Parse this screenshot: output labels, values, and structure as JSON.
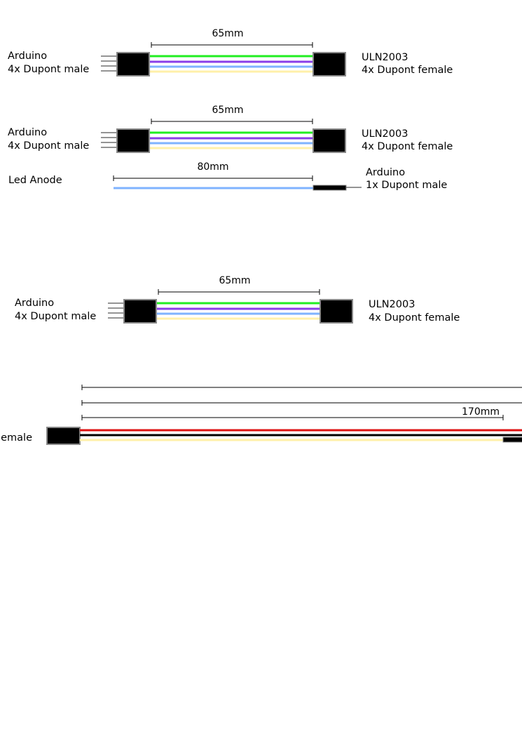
{
  "colors": {
    "green": "#22ee22",
    "purple": "#8a3ee8",
    "blue": "#7fb3ff",
    "yellow": "#fff0aa",
    "red": "#dd1111",
    "black": "#000000",
    "connector_fill": "#000000",
    "connector_border": "#888888",
    "pin": "#555555"
  },
  "cable1": {
    "dimension": "65mm",
    "left_label_1": "Arduino",
    "left_label_2": "4x Dupont male",
    "right_label_1": "ULN2003",
    "right_label_2": "4x Dupont female"
  },
  "cable2": {
    "dimension": "65mm",
    "left_label_1": "Arduino",
    "left_label_2": "4x Dupont male",
    "right_label_1": "ULN2003",
    "right_label_2": "4x Dupont female"
  },
  "cable3": {
    "dimension": "80mm",
    "left_label": "Led Anode",
    "right_label_1": "Arduino",
    "right_label_2": "1x Dupont male"
  },
  "cable4": {
    "dimension": "65mm",
    "left_label_1": "Arduino",
    "left_label_2": "4x Dupont male",
    "right_label_1": "ULN2003",
    "right_label_2": "4x Dupont female"
  },
  "cable5": {
    "dimension": "170mm",
    "left_label": "emale"
  }
}
